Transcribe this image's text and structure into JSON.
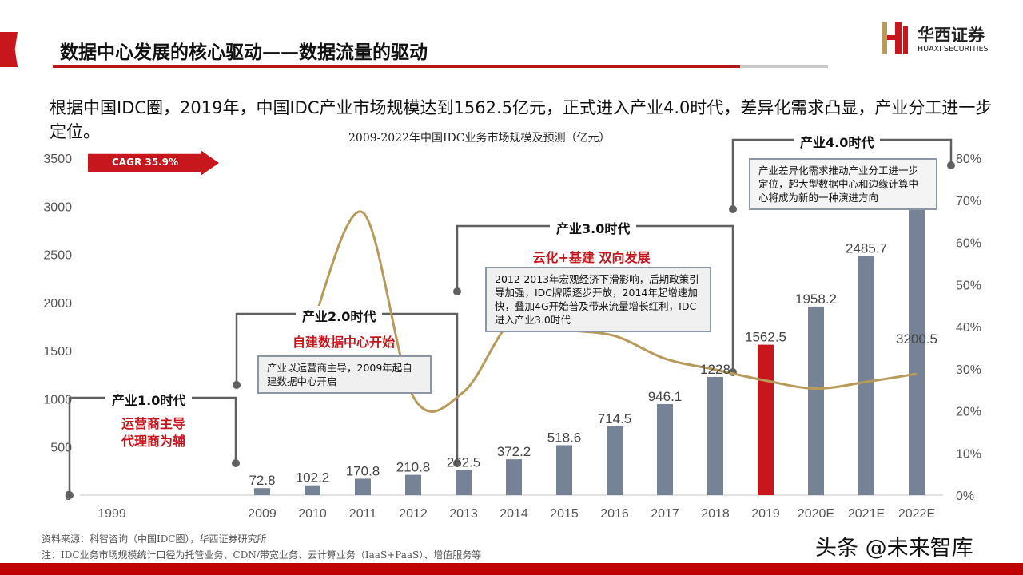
{
  "header": {
    "title": "数据中心发展的核心驱动——数据流量的驱动",
    "logo_cn": "华西证券",
    "logo_en": "HUAXI SECURITIES"
  },
  "intro": "根据中国IDC圈，2019年，中国IDC产业市场规模达到1562.5亿元，正式进入产业4.0时代，差异化需求凸显，产业分工进一步定位。",
  "cagr": "CAGR  35.9%",
  "eras": [
    {
      "title": "产业1.0时代",
      "sub": "运营商主导\n代理商为辅",
      "note": ""
    },
    {
      "title": "产业2.0时代",
      "sub": "自建数据中心开始",
      "note": "产业以运营商主导，2009年起自建数据中心开启"
    },
    {
      "title": "产业3.0时代",
      "sub": "云化+基建 双向发展",
      "note": "2012-2013年宏观经济下滑影响，后期政策引导加强，IDC牌照逐步开放，2014年起增速加快，叠加4G开始普及带来流量增长红利，IDC进入产业3.0时代"
    },
    {
      "title": "产业4.0时代",
      "sub": "",
      "note": "产业差异化需求推动产业分工进一步定位，超大型数据中心和边缘计算中心将成为新的一种演进方向"
    }
  ],
  "source": "资料来源：科智咨询（中国IDC圈），华西证券研究所",
  "note": "注：IDC业务市场规模统计口径为托管业务、CDN/带宽业务、云计算业务（IaaS+PaaS）、增值服务等",
  "watermark": "头条 @未来智库",
  "colors": {
    "bar": "#768396",
    "highlight": "#c8161d",
    "line": "#b89a5a",
    "accent": "#c8161d"
  },
  "chart_data": {
    "type": "bar+line",
    "title": "2009-2022年中国IDC业务市场规模及预测（亿元）",
    "categories": [
      "1999",
      "2009",
      "2010",
      "2011",
      "2012",
      "2013",
      "2014",
      "2015",
      "2016",
      "2017",
      "2018",
      "2019",
      "2020E",
      "2021E",
      "2022E"
    ],
    "series": [
      {
        "type": "bar",
        "axis": "left",
        "values": [
          null,
          72.8,
          102.2,
          170.8,
          210.8,
          262.5,
          372.2,
          518.6,
          714.5,
          946.1,
          1228,
          1562.5,
          1958.2,
          2485.7,
          3200.5
        ],
        "labels": [
          "",
          "72.8",
          "102.2",
          "170.8",
          "210.8",
          "262.5",
          "372.2",
          "518.6",
          "714.5",
          "946.1",
          "1228",
          "1562.5",
          "1958.2",
          "2485.7",
          "3200.5"
        ],
        "highlight": "2019"
      },
      {
        "type": "line",
        "axis": "right",
        "unit": "%",
        "values": [
          null,
          null,
          40.4,
          67.1,
          23.4,
          24.5,
          41.8,
          39.3,
          37.8,
          32.4,
          29.8,
          27.2,
          25.3,
          26.9,
          28.8
        ]
      }
    ],
    "yleft": {
      "range": [
        0,
        3500
      ],
      "ticks": [
        "0",
        "500",
        "1000",
        "1500",
        "2000",
        "2500",
        "3000",
        "3500"
      ]
    },
    "yright": {
      "range": [
        0,
        80
      ],
      "ticks": [
        "0%",
        "10%",
        "20%",
        "30%",
        "40%",
        "50%",
        "60%",
        "70%",
        "80%"
      ]
    },
    "grid": false,
    "legend": "none"
  }
}
